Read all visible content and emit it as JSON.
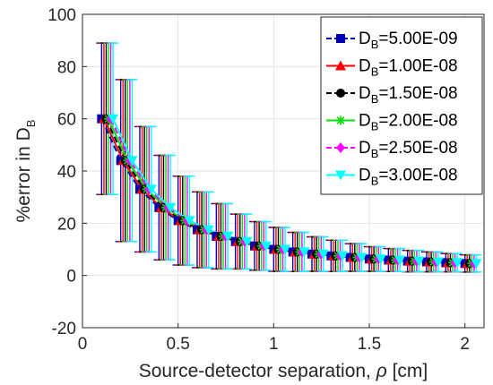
{
  "chart_data": {
    "type": "line",
    "xlabel_prefix": "Source-detector separation, ",
    "xlabel_symbol": "ρ",
    "xlabel_suffix": " [cm]",
    "ylabel_main": "%error in D",
    "ylabel_sub": "B",
    "xlim": [
      0,
      2.1
    ],
    "ylim": [
      -20,
      100
    ],
    "xticks": [
      0,
      0.5,
      1,
      1.5,
      2
    ],
    "xtick_labels": [
      "0",
      "0.5",
      "1",
      "1.5",
      "2"
    ],
    "yticks": [
      -20,
      0,
      20,
      40,
      60,
      80,
      100
    ],
    "ytick_labels": [
      "-20",
      "0",
      "20",
      "40",
      "60",
      "80",
      "100"
    ],
    "grid": true,
    "legend_position": "top-right",
    "x": [
      0.1,
      0.2,
      0.3,
      0.4,
      0.5,
      0.6,
      0.7,
      0.8,
      0.9,
      1.0,
      1.1,
      1.2,
      1.3,
      1.4,
      1.5,
      1.6,
      1.7,
      1.8,
      1.9,
      2.0
    ],
    "x_offset_step": 0.012,
    "series": [
      {
        "name_main": "D",
        "name_sub": "B",
        "name_value": "=5.00E-09",
        "color": "#0000b4",
        "marker": "square",
        "line": "dashed",
        "values": [
          60,
          44,
          33,
          26,
          21,
          17.5,
          15,
          13,
          11.3,
          10,
          9,
          8.2,
          7.5,
          6.9,
          6.3,
          5.9,
          5.5,
          5.2,
          4.9,
          4.6
        ],
        "errors": [
          29,
          31,
          24,
          20,
          17,
          14.5,
          12.5,
          10.5,
          9.3,
          8.4,
          7.5,
          6.6,
          6,
          5.3,
          4.7,
          4.4,
          4.1,
          3.8,
          3.5,
          3.3
        ]
      },
      {
        "name_main": "D",
        "name_sub": "B",
        "name_value": "=1.00E-08",
        "color": "#ff0000",
        "marker": "triangle",
        "line": "solid",
        "values": [
          60,
          44,
          33,
          26,
          21,
          17.5,
          15,
          13,
          11.3,
          10,
          9,
          8.2,
          7.5,
          6.9,
          6.3,
          5.9,
          5.5,
          5.2,
          4.9,
          4.6
        ],
        "errors": [
          29,
          31,
          24,
          20,
          17,
          14.5,
          12.5,
          10.5,
          9.3,
          8.4,
          7.5,
          6.6,
          6,
          5.3,
          4.7,
          4.4,
          4.1,
          3.8,
          3.5,
          3.3
        ]
      },
      {
        "name_main": "D",
        "name_sub": "B",
        "name_value": "=1.50E-08",
        "color": "#000000",
        "marker": "circle",
        "line": "dashed",
        "values": [
          60,
          44,
          33,
          26,
          21,
          17.5,
          15,
          13,
          11.3,
          10,
          9,
          8.2,
          7.5,
          6.9,
          6.3,
          5.9,
          5.5,
          5.2,
          4.9,
          4.6
        ],
        "errors": [
          29,
          31,
          24,
          20,
          17,
          14.5,
          12.5,
          10.5,
          9.3,
          8.4,
          7.5,
          6.6,
          6,
          5.3,
          4.7,
          4.4,
          4.1,
          3.8,
          3.5,
          3.3
        ]
      },
      {
        "name_main": "D",
        "name_sub": "B",
        "name_value": "=2.00E-08",
        "color": "#00e000",
        "marker": "star",
        "line": "solid",
        "values": [
          60,
          44,
          33,
          26,
          21,
          17.5,
          15,
          13,
          11.3,
          10,
          9,
          8.2,
          7.5,
          6.9,
          6.3,
          5.9,
          5.5,
          5.2,
          4.9,
          4.6
        ],
        "errors": [
          29,
          31,
          24,
          20,
          17,
          14.5,
          12.5,
          10.5,
          9.3,
          8.4,
          7.5,
          6.6,
          6,
          5.3,
          4.7,
          4.4,
          4.1,
          3.8,
          3.5,
          3.3
        ]
      },
      {
        "name_main": "D",
        "name_sub": "B",
        "name_value": "=2.50E-08",
        "color": "#ff00ff",
        "marker": "diamond",
        "line": "dashed",
        "values": [
          60,
          44,
          33,
          26,
          21,
          17.5,
          15,
          13,
          11.3,
          10,
          9,
          8.2,
          7.5,
          6.9,
          6.3,
          5.9,
          5.5,
          5.2,
          4.9,
          4.6
        ],
        "errors": [
          29,
          31,
          24,
          20,
          17,
          14.5,
          12.5,
          10.5,
          9.3,
          8.4,
          7.5,
          6.6,
          6,
          5.3,
          4.7,
          4.4,
          4.1,
          3.8,
          3.5,
          3.3
        ]
      },
      {
        "name_main": "D",
        "name_sub": "B",
        "name_value": "=3.00E-08",
        "color": "#00ffff",
        "marker": "triangle-down",
        "line": "solid",
        "values": [
          60,
          44,
          33,
          26,
          21,
          17.5,
          15,
          13,
          11.3,
          10,
          9,
          8.2,
          7.5,
          6.9,
          6.3,
          5.9,
          5.5,
          5.2,
          4.9,
          4.6
        ],
        "errors": [
          29,
          31,
          24,
          20,
          17,
          14.5,
          12.5,
          10.5,
          9.3,
          8.4,
          7.5,
          6.6,
          6,
          5.3,
          4.7,
          4.4,
          4.1,
          3.8,
          3.5,
          3.3
        ]
      }
    ]
  }
}
